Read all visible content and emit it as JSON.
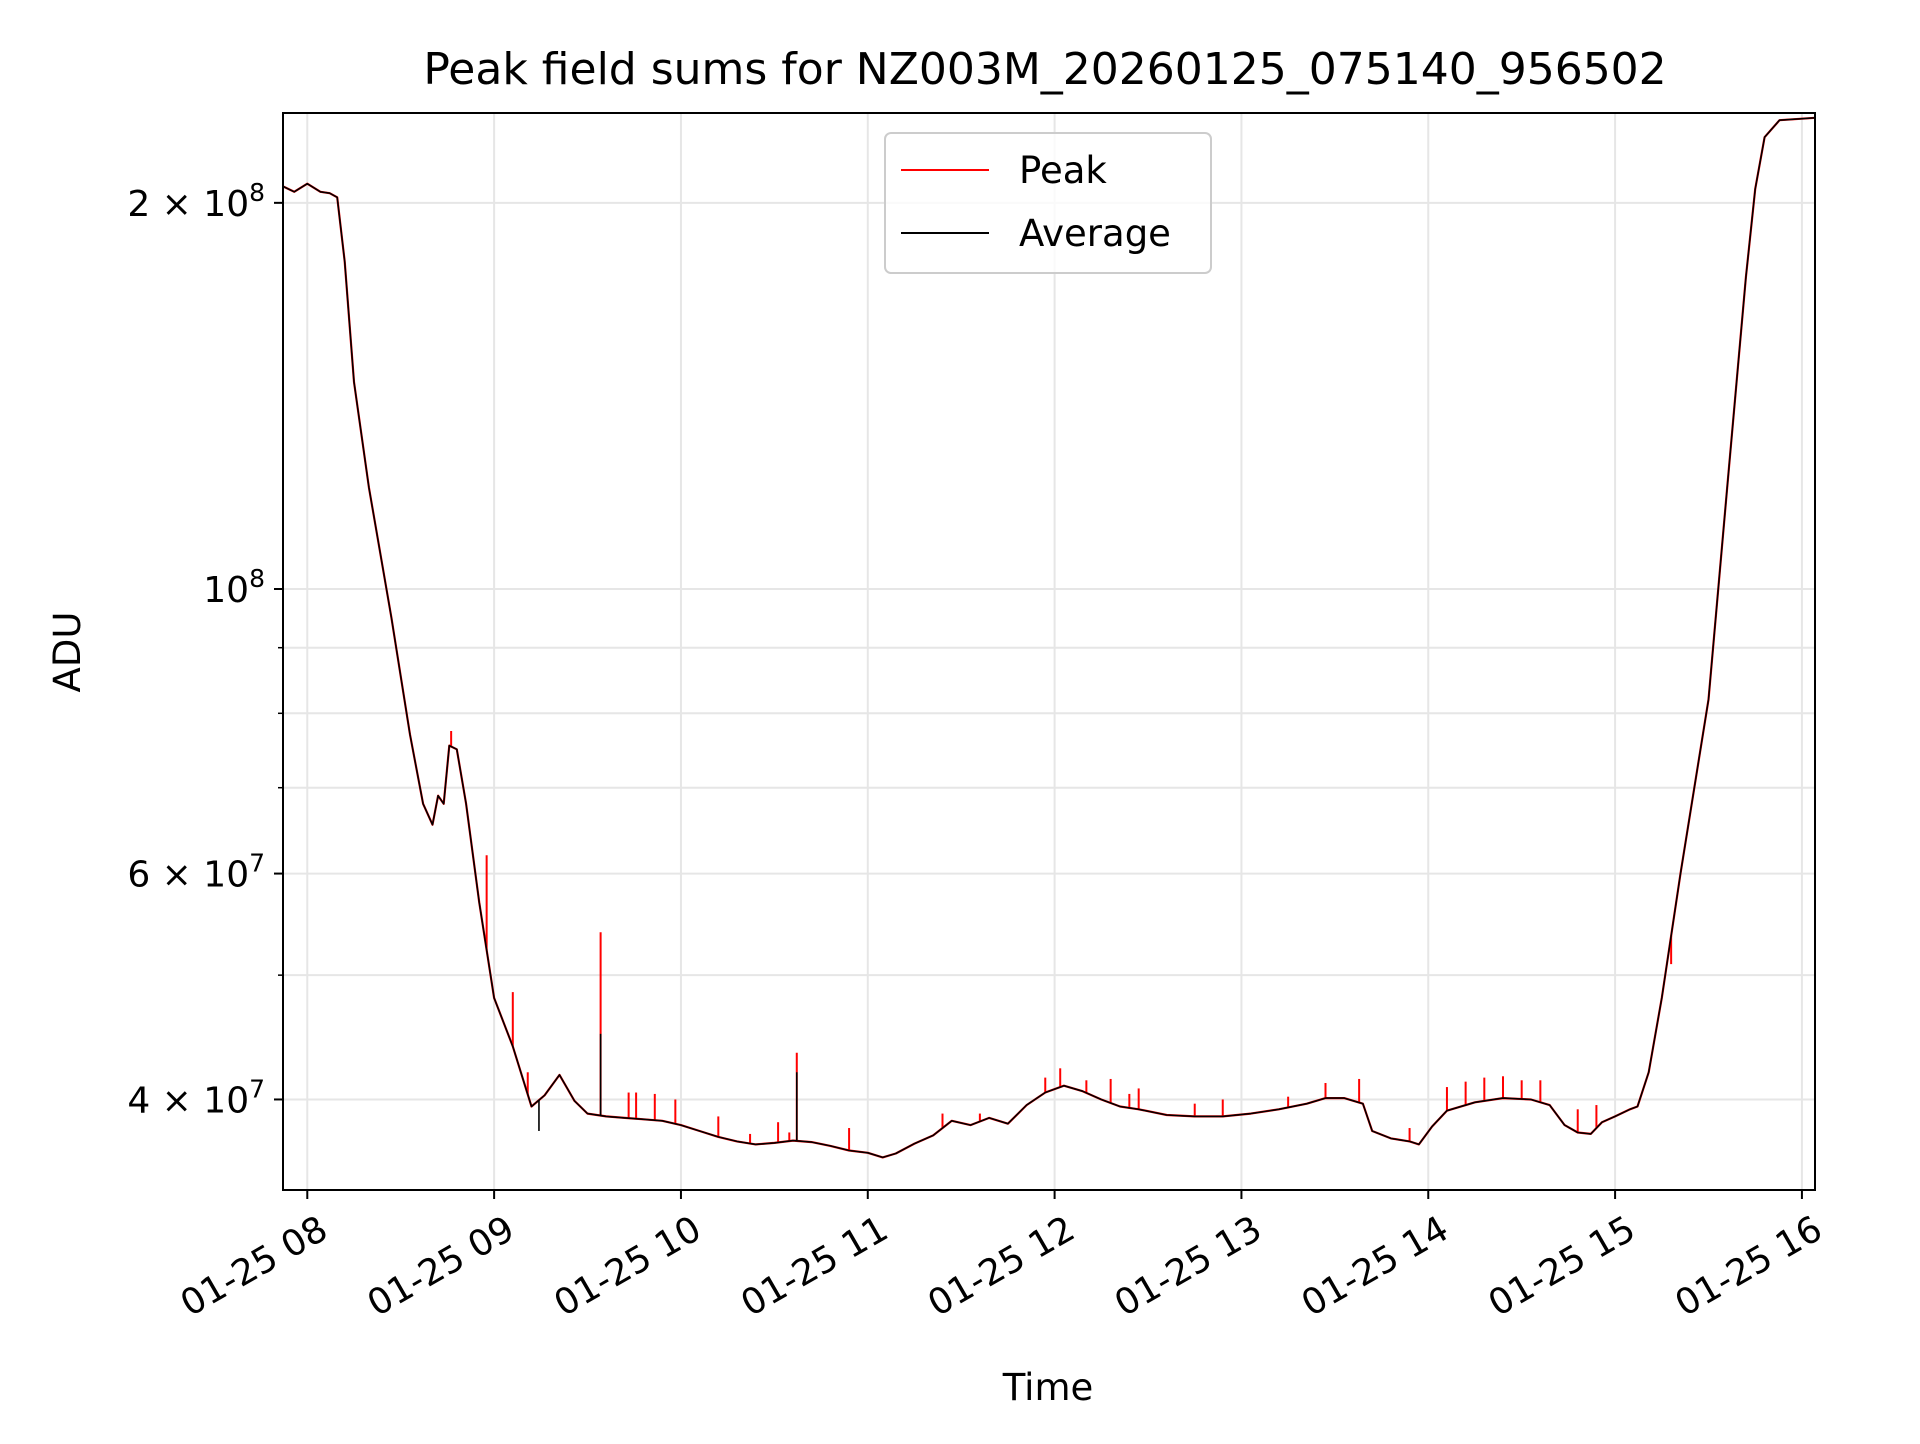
{
  "chart_data": {
    "type": "line",
    "title": "Peak field sums for NZ003M_20260125_075140_956502",
    "xlabel": "Time",
    "ylabel": "ADU",
    "yscale": "log",
    "ylim": [
      34000000,
      235000000
    ],
    "xlim_hours": [
      7.87,
      16.07
    ],
    "grid": true,
    "legend_position": "top-center",
    "colors": {
      "peak": "#ff0000",
      "average": "#000000",
      "grid": "#e6e6e6"
    },
    "x_ticks": [
      {
        "hour": 8,
        "label": "01-25 08"
      },
      {
        "hour": 9,
        "label": "01-25 09"
      },
      {
        "hour": 10,
        "label": "01-25 10"
      },
      {
        "hour": 11,
        "label": "01-25 11"
      },
      {
        "hour": 12,
        "label": "01-25 12"
      },
      {
        "hour": 13,
        "label": "01-25 13"
      },
      {
        "hour": 14,
        "label": "01-25 14"
      },
      {
        "hour": 15,
        "label": "01-25 15"
      },
      {
        "hour": 16,
        "label": "01-25 16"
      }
    ],
    "y_major_ticks": [
      {
        "value": 40000000,
        "mantissa": "4",
        "exp": "7"
      },
      {
        "value": 60000000,
        "mantissa": "6",
        "exp": "7"
      },
      {
        "value": 100000000,
        "mantissa": "",
        "exp": "8"
      },
      {
        "value": 200000000,
        "mantissa": "2",
        "exp": "8"
      }
    ],
    "y_minor_grid": [
      50000000,
      70000000,
      80000000,
      90000000
    ],
    "series": [
      {
        "name": "Average",
        "color": "#000000",
        "points": [
          [
            7.87,
            206000000
          ],
          [
            7.93,
            204000000
          ],
          [
            8.0,
            207000000
          ],
          [
            8.07,
            204000000
          ],
          [
            8.12,
            203500000
          ],
          [
            8.16,
            202000000
          ],
          [
            8.2,
            180000000
          ],
          [
            8.25,
            145000000
          ],
          [
            8.33,
            120000000
          ],
          [
            8.45,
            95000000
          ],
          [
            8.55,
            77000000
          ],
          [
            8.62,
            68000000
          ],
          [
            8.67,
            65500000
          ],
          [
            8.7,
            69000000
          ],
          [
            8.73,
            68000000
          ],
          [
            8.76,
            75500000
          ],
          [
            8.8,
            75000000
          ],
          [
            8.85,
            68000000
          ],
          [
            8.92,
            57000000
          ],
          [
            9.0,
            48000000
          ],
          [
            9.1,
            44000000
          ],
          [
            9.2,
            39500000
          ],
          [
            9.27,
            40300000
          ],
          [
            9.35,
            41800000
          ],
          [
            9.43,
            39900000
          ],
          [
            9.5,
            39000000
          ],
          [
            9.6,
            38800000
          ],
          [
            9.7,
            38700000
          ],
          [
            9.8,
            38600000
          ],
          [
            9.9,
            38500000
          ],
          [
            10.0,
            38200000
          ],
          [
            10.1,
            37800000
          ],
          [
            10.2,
            37400000
          ],
          [
            10.3,
            37100000
          ],
          [
            10.4,
            36900000
          ],
          [
            10.5,
            37000000
          ],
          [
            10.6,
            37150000
          ],
          [
            10.7,
            37050000
          ],
          [
            10.8,
            36800000
          ],
          [
            10.9,
            36500000
          ],
          [
            11.0,
            36350000
          ],
          [
            11.08,
            36050000
          ],
          [
            11.15,
            36300000
          ],
          [
            11.25,
            36950000
          ],
          [
            11.35,
            37500000
          ],
          [
            11.45,
            38500000
          ],
          [
            11.55,
            38200000
          ],
          [
            11.65,
            38700000
          ],
          [
            11.75,
            38300000
          ],
          [
            11.85,
            39600000
          ],
          [
            11.95,
            40500000
          ],
          [
            12.05,
            41000000
          ],
          [
            12.15,
            40600000
          ],
          [
            12.25,
            40000000
          ],
          [
            12.35,
            39500000
          ],
          [
            12.45,
            39300000
          ],
          [
            12.6,
            38900000
          ],
          [
            12.75,
            38800000
          ],
          [
            12.9,
            38800000
          ],
          [
            13.05,
            39000000
          ],
          [
            13.2,
            39300000
          ],
          [
            13.35,
            39700000
          ],
          [
            13.45,
            40100000
          ],
          [
            13.55,
            40100000
          ],
          [
            13.65,
            39700000
          ],
          [
            13.7,
            37800000
          ],
          [
            13.8,
            37300000
          ],
          [
            13.9,
            37100000
          ],
          [
            13.95,
            36900000
          ],
          [
            14.02,
            38100000
          ],
          [
            14.1,
            39200000
          ],
          [
            14.25,
            39800000
          ],
          [
            14.4,
            40100000
          ],
          [
            14.55,
            40000000
          ],
          [
            14.65,
            39600000
          ],
          [
            14.73,
            38200000
          ],
          [
            14.8,
            37700000
          ],
          [
            14.87,
            37600000
          ],
          [
            14.93,
            38400000
          ],
          [
            15.0,
            38800000
          ],
          [
            15.08,
            39300000
          ],
          [
            15.12,
            39500000
          ],
          [
            15.18,
            42000000
          ],
          [
            15.25,
            48000000
          ],
          [
            15.35,
            60000000
          ],
          [
            15.5,
            82000000
          ],
          [
            15.6,
            120000000
          ],
          [
            15.7,
            175000000
          ],
          [
            15.75,
            205000000
          ],
          [
            15.8,
            225000000
          ],
          [
            15.88,
            232000000
          ],
          [
            16.07,
            233000000
          ]
        ]
      },
      {
        "name": "Peak",
        "color": "#ff0000",
        "spikes": [
          [
            8.77,
            77500000
          ],
          [
            8.96,
            62000000
          ],
          [
            9.1,
            48500000
          ],
          [
            9.18,
            42000000
          ],
          [
            9.57,
            54000000
          ],
          [
            9.72,
            40500000
          ],
          [
            9.76,
            40500000
          ],
          [
            9.86,
            40400000
          ],
          [
            9.97,
            40000000
          ],
          [
            10.2,
            38800000
          ],
          [
            10.37,
            37600000
          ],
          [
            10.52,
            38400000
          ],
          [
            10.58,
            37700000
          ],
          [
            10.62,
            43500000
          ],
          [
            10.9,
            38000000
          ],
          [
            11.4,
            39000000
          ],
          [
            11.6,
            39000000
          ],
          [
            11.95,
            41600000
          ],
          [
            12.03,
            42300000
          ],
          [
            12.17,
            41400000
          ],
          [
            12.3,
            41500000
          ],
          [
            12.4,
            40400000
          ],
          [
            12.45,
            40800000
          ],
          [
            12.75,
            39700000
          ],
          [
            12.9,
            40000000
          ],
          [
            13.25,
            40200000
          ],
          [
            13.45,
            41200000
          ],
          [
            13.63,
            41500000
          ],
          [
            13.9,
            38000000
          ],
          [
            14.1,
            40900000
          ],
          [
            14.2,
            41300000
          ],
          [
            14.3,
            41600000
          ],
          [
            14.4,
            41700000
          ],
          [
            14.5,
            41400000
          ],
          [
            14.6,
            41400000
          ],
          [
            14.8,
            39300000
          ],
          [
            14.9,
            39600000
          ],
          [
            15.3,
            51000000
          ]
        ]
      }
    ],
    "legend": [
      {
        "label": "Peak",
        "color": "#ff0000"
      },
      {
        "label": "Average",
        "color": "#000000"
      }
    ]
  }
}
